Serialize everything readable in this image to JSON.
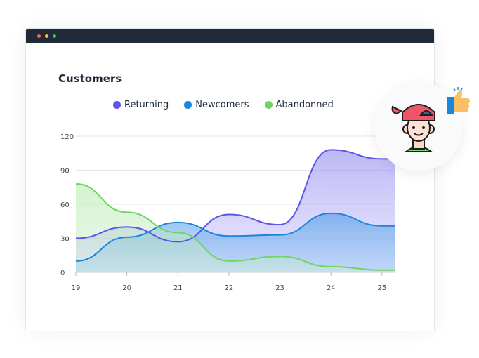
{
  "window": {
    "dots": [
      "#ff5f57",
      "#febc2e",
      "#28c840"
    ]
  },
  "chart_data": {
    "type": "area",
    "title": "Customers",
    "x": [
      19,
      20,
      21,
      22,
      23,
      24,
      25
    ],
    "ylim": [
      0,
      120
    ],
    "xlim": [
      19,
      25.25
    ],
    "yticks": [
      0,
      30,
      60,
      90,
      120
    ],
    "grid": true,
    "legend_position": "top",
    "series": [
      {
        "name": "Returning",
        "color": "#5b54e8",
        "values": [
          30,
          40,
          27,
          51,
          42,
          108,
          100
        ]
      },
      {
        "name": "Newcomers",
        "color": "#1a86db",
        "values": [
          10,
          31,
          44,
          32,
          33,
          52,
          41
        ]
      },
      {
        "name": "Abandonned",
        "color": "#6fd460",
        "values": [
          78,
          53,
          35,
          10,
          14,
          5,
          2
        ]
      }
    ]
  },
  "avatar": {
    "icon": "boy-with-cap-avatar",
    "badge": "thumbs-up-icon"
  }
}
